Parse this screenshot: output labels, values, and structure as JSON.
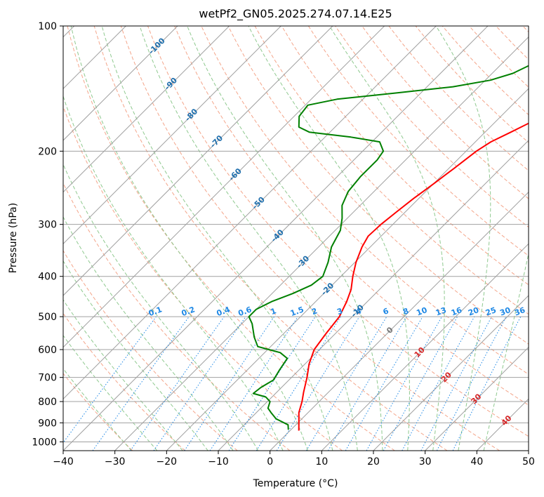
{
  "chart_data": {
    "type": "line",
    "title": "wetPf2_GN05.2025.274.07.14.E25",
    "xlabel": "Temperature (°C)",
    "ylabel": "Pressure (hPa)",
    "xlim": [
      -40,
      50
    ],
    "ylim": [
      1050,
      100
    ],
    "y_scale": "log",
    "grid": true,
    "x_ticks": [
      -40,
      -30,
      -20,
      -10,
      0,
      10,
      20,
      30,
      40,
      50
    ],
    "y_ticks": [
      100,
      200,
      300,
      400,
      500,
      600,
      700,
      800,
      900,
      1000
    ],
    "series": [
      {
        "color": "#ff0000",
        "points": [
          [
            1.7,
            940
          ],
          [
            0.2,
            900
          ],
          [
            -1.8,
            850
          ],
          [
            -3.3,
            800
          ],
          [
            -4.8,
            760
          ],
          [
            -7.0,
            700
          ],
          [
            -9.2,
            650
          ],
          [
            -11.0,
            600
          ],
          [
            -11.8,
            550
          ],
          [
            -12.5,
            500
          ],
          [
            -14.0,
            460
          ],
          [
            -15.5,
            430
          ],
          [
            -17.7,
            400
          ],
          [
            -19.8,
            370
          ],
          [
            -21.6,
            340
          ],
          [
            -22.5,
            320
          ],
          [
            -22.3,
            300
          ],
          [
            -21.7,
            280
          ],
          [
            -21.0,
            260
          ],
          [
            -20.0,
            240
          ],
          [
            -19.0,
            220
          ],
          [
            -18.0,
            200
          ],
          [
            -17.0,
            190
          ],
          [
            -15.0,
            180
          ],
          [
            -13.0,
            170
          ],
          [
            -11.5,
            160
          ],
          [
            -10.5,
            150
          ],
          [
            -10.0,
            140
          ],
          [
            -9.5,
            130
          ],
          [
            -9.5,
            120
          ],
          [
            -9.8,
            110
          ],
          [
            -10.0,
            100
          ]
        ]
      },
      {
        "color": "#008000",
        "points": [
          [
            -0.5,
            935
          ],
          [
            -1.5,
            910
          ],
          [
            -5.0,
            880
          ],
          [
            -7.2,
            850
          ],
          [
            -8.6,
            830
          ],
          [
            -9.5,
            800
          ],
          [
            -11.2,
            780
          ],
          [
            -14.3,
            765
          ],
          [
            -14.0,
            740
          ],
          [
            -13.0,
            710
          ],
          [
            -13.8,
            670
          ],
          [
            -14.5,
            630
          ],
          [
            -17.0,
            610
          ],
          [
            -22.5,
            590
          ],
          [
            -25.0,
            560
          ],
          [
            -28.0,
            520
          ],
          [
            -30.0,
            500
          ],
          [
            -30.0,
            480
          ],
          [
            -28.5,
            460
          ],
          [
            -26.0,
            440
          ],
          [
            -24.0,
            420
          ],
          [
            -23.5,
            400
          ],
          [
            -25.2,
            370
          ],
          [
            -27.5,
            340
          ],
          [
            -29.0,
            310
          ],
          [
            -31.0,
            290
          ],
          [
            -33.5,
            270
          ],
          [
            -35.0,
            250
          ],
          [
            -35.5,
            230
          ],
          [
            -35.5,
            210
          ],
          [
            -36.0,
            200
          ],
          [
            -38.5,
            190
          ],
          [
            -45.0,
            185
          ],
          [
            -54.0,
            180
          ],
          [
            -57.0,
            175
          ],
          [
            -59.0,
            165
          ],
          [
            -59.5,
            155
          ],
          [
            -55.0,
            150
          ],
          [
            -45.0,
            145
          ],
          [
            -35.0,
            140
          ],
          [
            -29.0,
            135
          ],
          [
            -26.0,
            130
          ],
          [
            -23.0,
            120
          ],
          [
            -22.5,
            110
          ],
          [
            -23.5,
            105
          ],
          [
            -25.0,
            100
          ]
        ]
      }
    ],
    "isotherm_labels": [
      {
        "t": -100,
        "p": 112,
        "text": "-100"
      },
      {
        "t": -90,
        "p": 138,
        "text": "-90"
      },
      {
        "t": -80,
        "p": 164,
        "text": "-80"
      },
      {
        "t": -70,
        "p": 190,
        "text": "-70"
      },
      {
        "t": -60,
        "p": 228,
        "text": "-60"
      },
      {
        "t": -50,
        "p": 267,
        "text": "-50"
      },
      {
        "t": -40,
        "p": 320,
        "text": "-40"
      },
      {
        "t": -30,
        "p": 370,
        "text": "-30"
      },
      {
        "t": -20,
        "p": 430,
        "text": "-20"
      },
      {
        "t": -10,
        "p": 485,
        "text": "-10"
      },
      {
        "t": 0,
        "p": 540,
        "text": "0"
      },
      {
        "t": 10,
        "p": 610,
        "text": "10"
      },
      {
        "t": 20,
        "p": 700,
        "text": "20"
      },
      {
        "t": 30,
        "p": 790,
        "text": "30"
      },
      {
        "t": 40,
        "p": 890,
        "text": "40"
      }
    ],
    "mixing_ratio_labels": [
      "0.1",
      "0.2",
      "0.4",
      "0.6",
      "1",
      "1.5",
      "2",
      "3",
      "4",
      "6",
      "8",
      "10",
      "13",
      "16",
      "20",
      "25",
      "30",
      "36"
    ],
    "mixing_ratio_label_pressure": 500,
    "colors": {
      "temperature": "#ff0000",
      "dewpoint": "#008000",
      "isotherm_grid": "#a0a0a0",
      "dry_adiabat": "#f4a58a",
      "moist_adiabat": "#8fc98f",
      "mixing_ratio": "#1e88e5",
      "isotherm_label_cold": "#1f6fad",
      "isotherm_label_zero": "#777777",
      "isotherm_label_warm": "#d62728"
    }
  }
}
